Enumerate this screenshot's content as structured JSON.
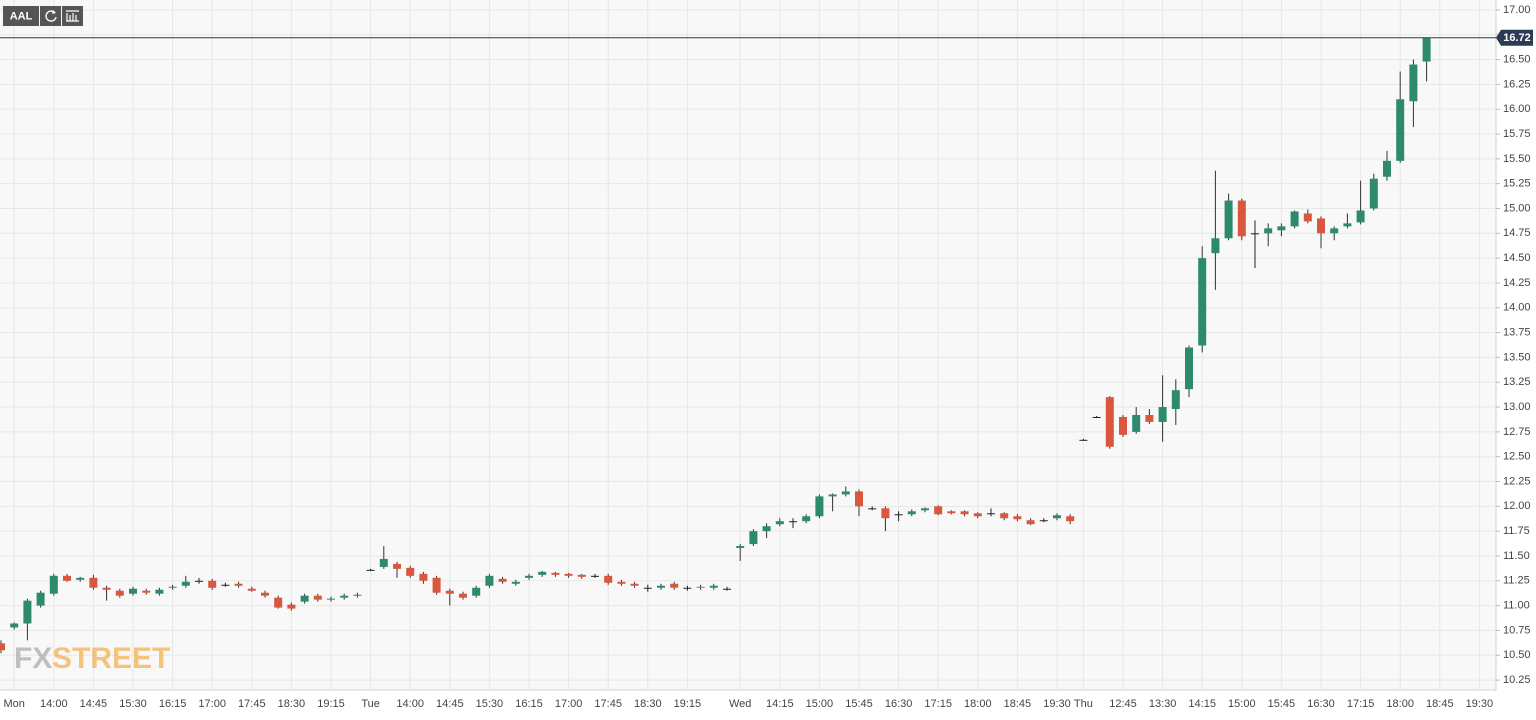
{
  "chart_data": {
    "type": "candlestick",
    "symbol": "AAL",
    "watermark": {
      "left": "FX",
      "right": "STREET"
    },
    "categories": [
      null,
      "Mon",
      null,
      null,
      "14:00",
      null,
      null,
      "14:45",
      null,
      null,
      "15:30",
      null,
      null,
      "16:15",
      null,
      null,
      "17:00",
      null,
      null,
      "17:45",
      null,
      null,
      "18:30",
      null,
      null,
      "19:15",
      null,
      null,
      "Tue",
      null,
      null,
      "14:00",
      null,
      null,
      "14:45",
      null,
      null,
      "15:30",
      null,
      null,
      "16:15",
      null,
      null,
      "17:00",
      null,
      null,
      "17:45",
      null,
      null,
      "18:30",
      null,
      null,
      "19:15",
      null,
      null,
      null,
      "Wed",
      null,
      null,
      "14:15",
      null,
      null,
      "15:00",
      null,
      null,
      "15:45",
      null,
      null,
      "16:30",
      null,
      null,
      "17:15",
      null,
      null,
      "18:00",
      null,
      null,
      "18:45",
      null,
      null,
      "19:30",
      null,
      "Thu",
      null,
      null,
      "12:45",
      null,
      null,
      "13:30",
      null,
      null,
      "14:15",
      null,
      null,
      "15:00",
      null,
      null,
      "15:45",
      null,
      null,
      "16:30",
      null,
      null,
      "17:15",
      null,
      null,
      "18:00",
      null,
      null,
      "18:45",
      null,
      null,
      "19:30"
    ],
    "open": [
      10.62,
      10.78,
      10.82,
      11.0,
      11.12,
      11.3,
      11.26,
      11.28,
      11.18,
      11.15,
      11.12,
      11.15,
      11.12,
      11.18,
      11.2,
      11.25,
      11.25,
      11.21,
      11.22,
      11.17,
      11.13,
      11.08,
      11.01,
      11.04,
      11.1,
      11.06,
      11.08,
      11.1,
      11.36,
      11.39,
      11.42,
      11.38,
      11.32,
      11.28,
      11.15,
      11.12,
      11.1,
      11.2,
      11.27,
      11.22,
      11.28,
      11.31,
      11.33,
      11.32,
      11.31,
      11.3,
      11.3,
      11.24,
      11.22,
      11.18,
      11.18,
      11.22,
      11.18,
      11.19,
      11.18,
      11.17,
      11.58,
      11.62,
      11.75,
      11.82,
      11.85,
      11.85,
      11.9,
      12.1,
      12.12,
      12.15,
      11.98,
      11.98,
      11.92,
      11.92,
      11.96,
      12.0,
      11.95,
      11.95,
      11.93,
      11.93,
      11.93,
      11.9,
      11.86,
      11.86,
      11.88,
      11.9,
      12.67,
      12.9,
      13.1,
      12.9,
      12.75,
      12.92,
      12.85,
      12.98,
      13.18,
      13.62,
      14.55,
      14.7,
      15.08,
      14.75,
      14.75,
      14.78,
      14.82,
      14.95,
      14.9,
      14.75,
      14.82,
      14.86,
      15.0,
      15.32,
      15.48,
      16.08,
      16.48,
      null,
      null,
      null,
      null
    ],
    "high": [
      10.65,
      10.83,
      11.07,
      11.15,
      11.32,
      11.32,
      11.29,
      11.31,
      11.2,
      11.17,
      11.19,
      11.17,
      11.18,
      11.21,
      11.3,
      11.28,
      11.27,
      11.23,
      11.24,
      11.19,
      11.15,
      11.1,
      11.03,
      11.12,
      11.12,
      11.09,
      11.12,
      11.13,
      11.37,
      11.6,
      11.44,
      11.4,
      11.34,
      11.3,
      11.17,
      11.14,
      11.2,
      11.32,
      11.29,
      11.26,
      11.32,
      11.35,
      11.34,
      11.33,
      11.32,
      11.32,
      11.32,
      11.26,
      11.24,
      11.21,
      11.22,
      11.24,
      11.2,
      11.21,
      11.22,
      11.19,
      11.62,
      11.77,
      11.83,
      11.88,
      11.88,
      11.92,
      12.12,
      12.13,
      12.2,
      12.17,
      12.0,
      12.0,
      11.95,
      11.97,
      11.99,
      12.01,
      11.96,
      11.96,
      11.94,
      11.98,
      11.94,
      11.92,
      11.88,
      11.88,
      11.93,
      11.92,
      12.68,
      12.91,
      13.11,
      12.92,
      13.0,
      12.98,
      13.32,
      13.28,
      13.62,
      14.62,
      15.38,
      15.15,
      15.1,
      14.88,
      14.85,
      14.85,
      14.98,
      14.99,
      14.92,
      14.82,
      14.95,
      15.28,
      15.35,
      15.58,
      16.38,
      16.5,
      16.72,
      null,
      null,
      null,
      null
    ],
    "low": [
      10.52,
      10.76,
      10.65,
      10.98,
      11.1,
      11.24,
      11.24,
      11.16,
      11.05,
      11.08,
      11.1,
      11.11,
      11.1,
      11.16,
      11.18,
      11.22,
      11.16,
      11.19,
      11.18,
      11.14,
      11.08,
      10.97,
      10.95,
      11.02,
      11.04,
      11.04,
      11.06,
      11.08,
      11.35,
      11.37,
      11.28,
      11.28,
      11.22,
      11.11,
      11.0,
      11.06,
      11.08,
      11.18,
      11.22,
      11.2,
      11.26,
      11.29,
      11.29,
      11.28,
      11.27,
      11.28,
      11.21,
      11.2,
      11.18,
      11.14,
      11.16,
      11.16,
      11.15,
      11.16,
      11.16,
      11.15,
      11.45,
      11.6,
      11.68,
      11.8,
      11.78,
      11.83,
      11.88,
      11.95,
      12.1,
      11.9,
      11.96,
      11.75,
      11.85,
      11.9,
      11.94,
      11.91,
      11.92,
      11.9,
      11.88,
      11.9,
      11.86,
      11.85,
      11.81,
      11.84,
      11.86,
      11.82,
      12.66,
      12.89,
      12.58,
      12.7,
      12.73,
      12.83,
      12.65,
      12.82,
      13.1,
      13.55,
      14.18,
      14.68,
      14.68,
      14.4,
      14.62,
      14.72,
      14.8,
      14.85,
      14.6,
      14.68,
      14.8,
      14.84,
      14.98,
      15.28,
      15.46,
      15.82,
      16.28,
      null,
      null,
      null,
      null
    ],
    "close": [
      10.55,
      10.82,
      11.05,
      11.13,
      11.3,
      11.25,
      11.28,
      11.18,
      11.16,
      11.1,
      11.17,
      11.13,
      11.16,
      11.19,
      11.24,
      11.25,
      11.18,
      11.21,
      11.2,
      11.15,
      11.1,
      10.98,
      10.97,
      11.1,
      11.06,
      11.07,
      11.1,
      11.11,
      11.36,
      11.47,
      11.37,
      11.3,
      11.25,
      11.13,
      11.12,
      11.08,
      11.18,
      11.3,
      11.24,
      11.24,
      11.3,
      11.34,
      11.31,
      11.3,
      11.29,
      11.3,
      11.23,
      11.22,
      11.2,
      11.18,
      11.2,
      11.18,
      11.18,
      11.18,
      11.2,
      11.17,
      11.6,
      11.75,
      11.8,
      11.85,
      11.85,
      11.9,
      12.1,
      12.12,
      12.15,
      12.0,
      11.98,
      11.88,
      11.92,
      11.95,
      11.98,
      11.92,
      11.93,
      11.92,
      11.9,
      11.93,
      11.88,
      11.87,
      11.82,
      11.86,
      11.91,
      11.85,
      12.67,
      12.9,
      12.6,
      12.72,
      12.92,
      12.85,
      13.0,
      13.17,
      13.6,
      14.5,
      14.7,
      15.08,
      14.72,
      14.75,
      14.8,
      14.82,
      14.97,
      14.87,
      14.75,
      14.8,
      14.85,
      14.98,
      15.3,
      15.48,
      16.1,
      16.45,
      16.72,
      null,
      null,
      null,
      null
    ],
    "up_color": "#2d8a6c",
    "down_color": "#d9573f",
    "doji_color": "#222222",
    "last_price": 16.72,
    "last_price_color": "#2b3a55",
    "ylim": [
      10.15,
      17.1
    ],
    "yticks": [
      {
        "value": 10.25,
        "label": "10.25"
      },
      {
        "value": 10.5,
        "label": "10.50"
      },
      {
        "value": 10.75,
        "label": "10.75"
      },
      {
        "value": 11,
        "label": "11.00"
      },
      {
        "value": 11.25,
        "label": "11.25"
      },
      {
        "value": 11.5,
        "label": "11.50"
      },
      {
        "value": 11.75,
        "label": "11.75"
      },
      {
        "value": 12,
        "label": "12.00"
      },
      {
        "value": 12.25,
        "label": "12.25"
      },
      {
        "value": 12.5,
        "label": "12.50"
      },
      {
        "value": 12.75,
        "label": "12.75"
      },
      {
        "value": 13,
        "label": "13.00"
      },
      {
        "value": 13.25,
        "label": "13.25"
      },
      {
        "value": 13.5,
        "label": "13.50"
      },
      {
        "value": 13.75,
        "label": "13.75"
      },
      {
        "value": 14,
        "label": "14.00"
      },
      {
        "value": 14.25,
        "label": "14.25"
      },
      {
        "value": 14.5,
        "label": "14.50"
      },
      {
        "value": 14.75,
        "label": "14.75"
      },
      {
        "value": 15,
        "label": "15.00"
      },
      {
        "value": 15.25,
        "label": "15.25"
      },
      {
        "value": 15.5,
        "label": "15.50"
      },
      {
        "value": 15.75,
        "label": "15.75"
      },
      {
        "value": 16,
        "label": "16.00"
      },
      {
        "value": 16.25,
        "label": "16.25"
      },
      {
        "value": 16.5,
        "label": "16.50"
      },
      {
        "value": 16.75,
        "label": "16.75"
      },
      {
        "value": 17,
        "label": "17.00"
      }
    ],
    "grid": true
  }
}
